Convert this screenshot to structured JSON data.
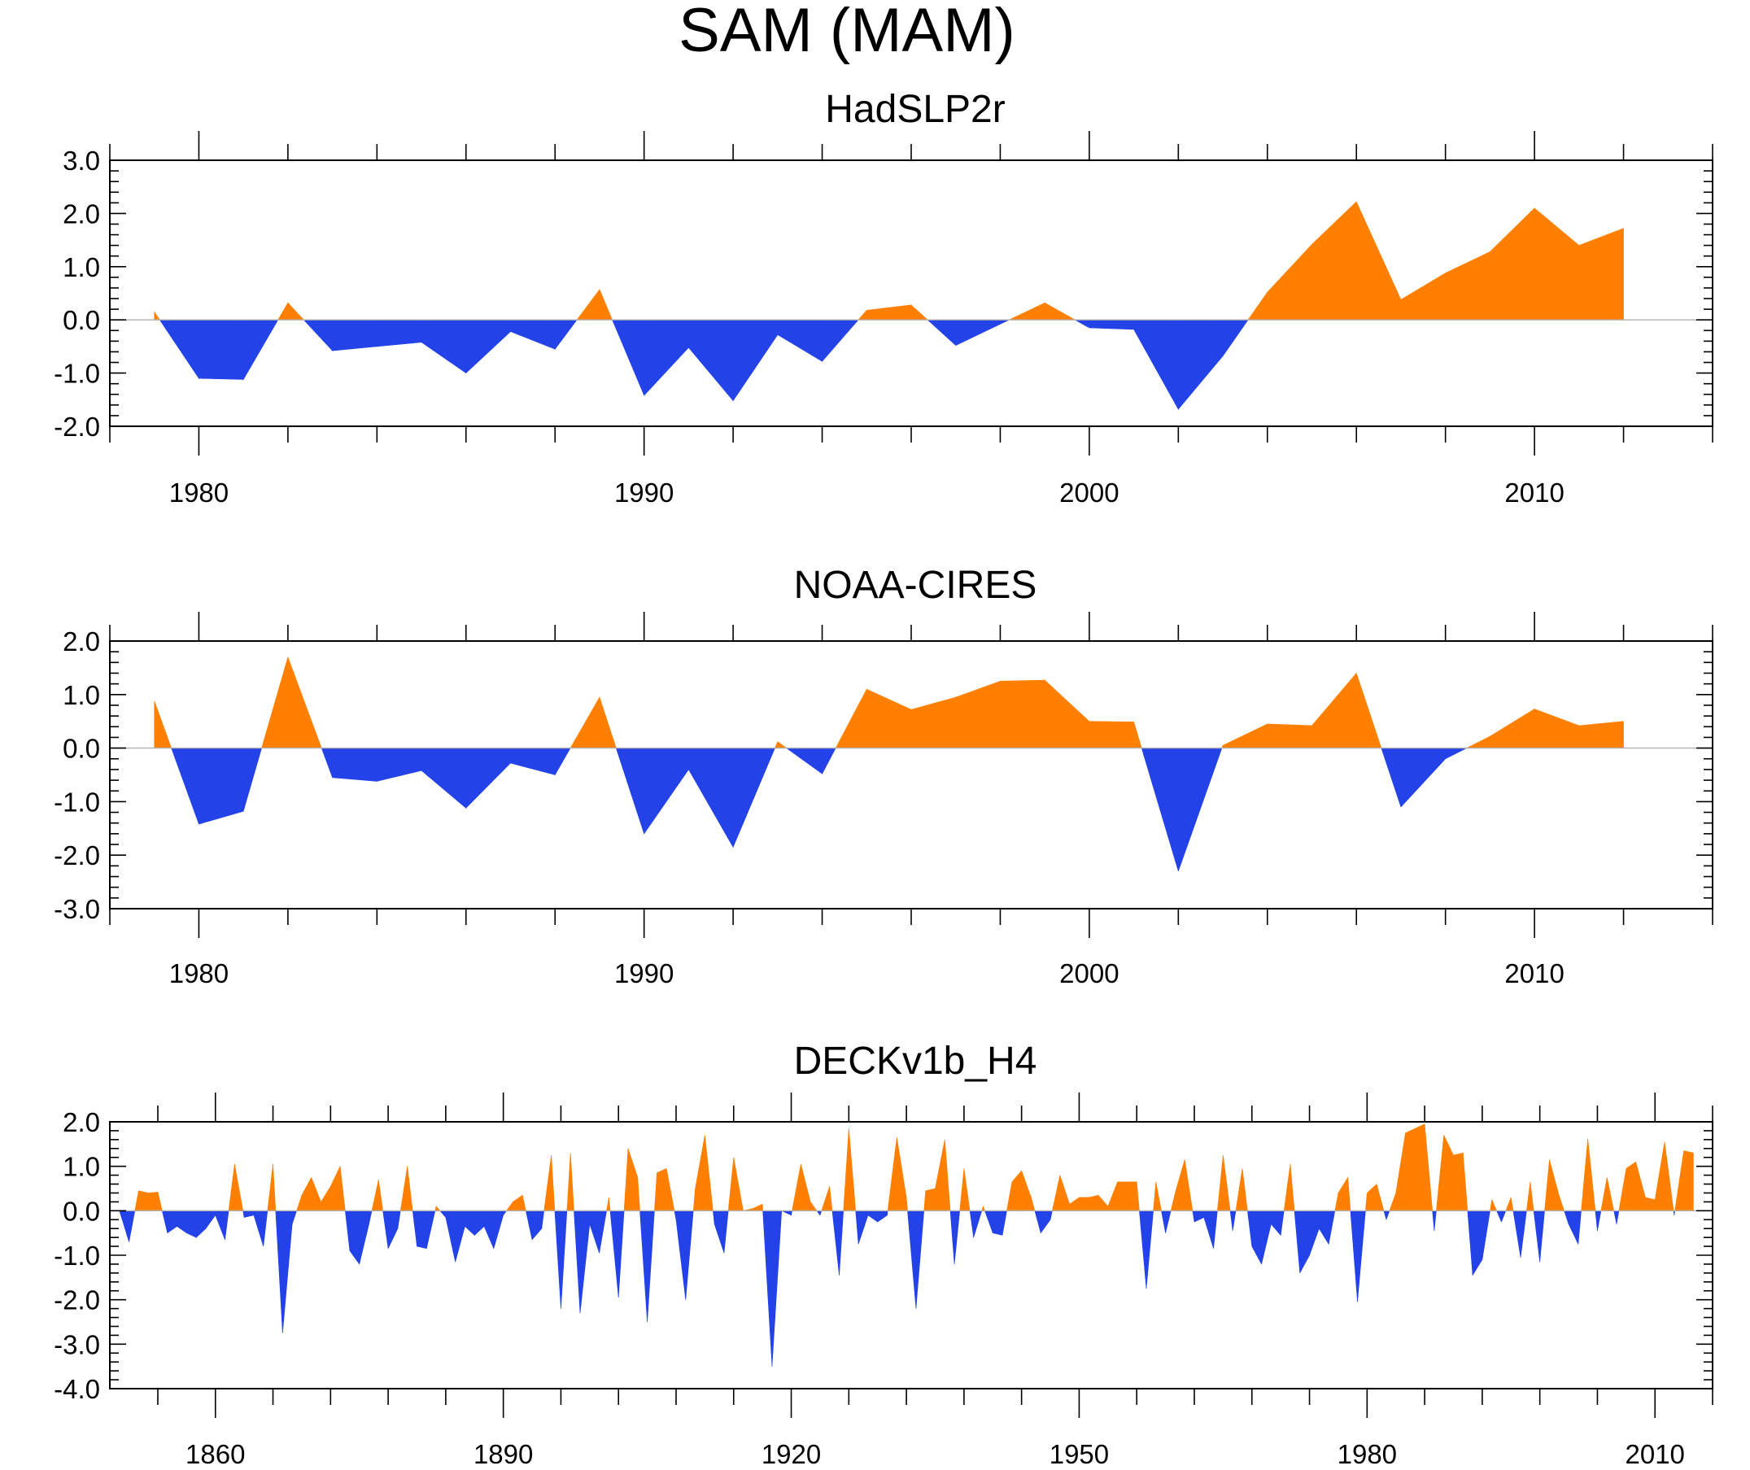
{
  "title": "SAM (MAM)",
  "colors": {
    "positive": "#ff8000",
    "negative": "#2342e8",
    "zero_line": "#b0b0b0"
  },
  "chart_data": [
    {
      "type": "area",
      "title": "HadSLP2r",
      "xlabel": "",
      "ylabel": "",
      "xlim": [
        1978,
        2014
      ],
      "ylim": [
        -2.0,
        3.0
      ],
      "x_ticks": [
        1980,
        1990,
        2000,
        2010
      ],
      "y_ticks": [
        -2.0,
        -1.0,
        0.0,
        1.0,
        2.0,
        3.0
      ],
      "x_tick_labels": [
        "1980",
        "1990",
        "2000",
        "2010"
      ],
      "y_tick_labels": [
        "-2.0",
        "-1.0",
        "0.0",
        "1.0",
        "2.0",
        "3.0"
      ],
      "x": [
        1979,
        1980,
        1981,
        1982,
        1983,
        1984,
        1985,
        1986,
        1987,
        1988,
        1989,
        1990,
        1991,
        1992,
        1993,
        1994,
        1995,
        1996,
        1997,
        1998,
        1999,
        2000,
        2001,
        2002,
        2003,
        2004,
        2005,
        2006,
        2007,
        2008,
        2009,
        2010,
        2011,
        2012
      ],
      "values": [
        0.15,
        -1.1,
        -1.12,
        0.32,
        -0.58,
        -0.5,
        -0.42,
        -1.0,
        -0.22,
        -0.55,
        0.57,
        -1.42,
        -0.52,
        -1.52,
        -0.28,
        -0.78,
        0.18,
        0.28,
        -0.48,
        -0.08,
        0.32,
        -0.15,
        -0.18,
        -1.68,
        -0.68,
        0.52,
        1.42,
        2.22,
        0.38,
        0.88,
        1.28,
        2.1,
        1.4,
        1.72
      ]
    },
    {
      "type": "area",
      "title": "NOAA-CIRES",
      "xlabel": "",
      "ylabel": "",
      "xlim": [
        1978,
        2014
      ],
      "ylim": [
        -3.0,
        2.0
      ],
      "x_ticks": [
        1980,
        1990,
        2000,
        2010
      ],
      "y_ticks": [
        -3.0,
        -2.0,
        -1.0,
        0.0,
        1.0,
        2.0
      ],
      "x_tick_labels": [
        "1980",
        "1990",
        "2000",
        "2010"
      ],
      "y_tick_labels": [
        "-3.0",
        "-2.0",
        "-1.0",
        "0.0",
        "1.0",
        "2.0"
      ],
      "x": [
        1979,
        1980,
        1981,
        1982,
        1983,
        1984,
        1985,
        1986,
        1987,
        1988,
        1989,
        1990,
        1991,
        1992,
        1993,
        1994,
        1995,
        1996,
        1997,
        1998,
        1999,
        2000,
        2001,
        2002,
        2003,
        2004,
        2005,
        2006,
        2007,
        2008,
        2009,
        2010,
        2011,
        2012
      ],
      "values": [
        0.88,
        -1.42,
        -1.18,
        1.7,
        -0.55,
        -0.62,
        -0.42,
        -1.12,
        -0.28,
        -0.5,
        0.95,
        -1.6,
        -0.4,
        -1.85,
        0.12,
        -0.48,
        1.1,
        0.72,
        0.95,
        1.25,
        1.27,
        0.5,
        0.49,
        -2.3,
        0.05,
        0.45,
        0.42,
        1.4,
        -1.1,
        -0.2,
        0.22,
        0.73,
        0.42,
        0.5
      ]
    },
    {
      "type": "area",
      "title": "DECKv1b_H4",
      "xlabel": "",
      "ylabel": "",
      "xlim": [
        1849,
        2016
      ],
      "ylim": [
        -4.0,
        2.0
      ],
      "x_ticks": [
        1860,
        1890,
        1920,
        1950,
        1980,
        2010
      ],
      "y_ticks": [
        -4.0,
        -3.0,
        -2.0,
        -1.0,
        0.0,
        1.0,
        2.0
      ],
      "x_tick_labels": [
        "1860",
        "1890",
        "1920",
        "1950",
        "1980",
        "2010"
      ],
      "y_tick_labels": [
        "-4.0",
        "-3.0",
        "-2.0",
        "-1.0",
        "0.0",
        "1.0",
        "2.0"
      ],
      "x": [
        1850,
        1851,
        1852,
        1853,
        1854,
        1855,
        1856,
        1857,
        1858,
        1859,
        1860,
        1861,
        1862,
        1863,
        1864,
        1865,
        1866,
        1867,
        1868,
        1869,
        1870,
        1871,
        1872,
        1873,
        1874,
        1875,
        1876,
        1877,
        1878,
        1879,
        1880,
        1881,
        1882,
        1883,
        1884,
        1885,
        1886,
        1887,
        1888,
        1889,
        1890,
        1891,
        1892,
        1893,
        1894,
        1895,
        1896,
        1897,
        1898,
        1899,
        1900,
        1901,
        1902,
        1903,
        1904,
        1905,
        1906,
        1907,
        1908,
        1909,
        1910,
        1911,
        1912,
        1913,
        1914,
        1915,
        1916,
        1917,
        1918,
        1919,
        1920,
        1921,
        1922,
        1923,
        1924,
        1925,
        1926,
        1927,
        1928,
        1929,
        1930,
        1931,
        1932,
        1933,
        1934,
        1935,
        1936,
        1937,
        1938,
        1939,
        1940,
        1941,
        1942,
        1943,
        1944,
        1945,
        1946,
        1947,
        1948,
        1949,
        1950,
        1951,
        1952,
        1953,
        1954,
        1955,
        1956,
        1957,
        1958,
        1959,
        1960,
        1961,
        1962,
        1963,
        1964,
        1965,
        1966,
        1967,
        1968,
        1969,
        1970,
        1971,
        1972,
        1973,
        1974,
        1975,
        1976,
        1977,
        1978,
        1979,
        1980,
        1981,
        1982,
        1983,
        1984,
        1985,
        1986,
        1987,
        1988,
        1989,
        1990,
        1991,
        1992,
        1993,
        1994,
        1995,
        1996,
        1997,
        1998,
        1999,
        2000,
        2001,
        2002,
        2003,
        2004,
        2005,
        2006,
        2007,
        2008,
        2009,
        2010,
        2011,
        2012,
        2013,
        2014
      ],
      "values": [
        0.0,
        -0.7,
        0.45,
        0.4,
        0.42,
        -0.5,
        -0.35,
        -0.5,
        -0.6,
        -0.4,
        -0.1,
        -0.65,
        1.05,
        -0.15,
        -0.1,
        -0.8,
        1.05,
        -2.75,
        -0.3,
        0.35,
        0.75,
        0.2,
        0.55,
        1.0,
        -0.9,
        -1.2,
        -0.3,
        0.7,
        -0.85,
        -0.4,
        1.0,
        -0.8,
        -0.85,
        0.1,
        -0.15,
        -1.15,
        -0.35,
        -0.55,
        -0.35,
        -0.85,
        -0.1,
        0.2,
        0.35,
        -0.65,
        -0.4,
        1.25,
        -2.2,
        1.3,
        -2.3,
        -0.3,
        -0.95,
        0.3,
        -1.95,
        1.4,
        0.75,
        -2.5,
        0.85,
        0.95,
        -0.2,
        -2.0,
        0.5,
        1.7,
        -0.3,
        -0.95,
        1.2,
        0.0,
        0.05,
        0.15,
        -3.5,
        0.0,
        -0.1,
        1.05,
        0.2,
        -0.1,
        0.55,
        -1.45,
        1.85,
        -0.75,
        -0.1,
        -0.25,
        -0.1,
        1.65,
        0.3,
        -2.2,
        0.45,
        0.5,
        1.6,
        -1.2,
        0.95,
        -0.6,
        0.1,
        -0.5,
        -0.55,
        0.65,
        0.9,
        0.3,
        -0.5,
        -0.2,
        0.8,
        0.15,
        0.3,
        0.3,
        0.35,
        0.1,
        0.65,
        0.65,
        0.65,
        -1.75,
        0.65,
        -0.5,
        0.4,
        1.15,
        -0.25,
        -0.15,
        -0.85,
        1.25,
        -0.45,
        0.95,
        -0.8,
        -1.2,
        -0.3,
        -0.55,
        1.05,
        -1.4,
        -1.0,
        -0.4,
        -0.75,
        0.4,
        0.75,
        -2.05,
        0.4,
        0.6,
        -0.2,
        0.4,
        1.75,
        1.85,
        1.95,
        -0.45,
        1.7,
        1.25,
        1.3,
        -1.45,
        -1.1,
        0.25,
        -0.25,
        0.3,
        -1.05,
        0.65,
        -1.15,
        1.15,
        0.35,
        -0.3,
        -0.75,
        1.62,
        -0.45,
        0.75,
        -0.3,
        0.95,
        1.1,
        0.3,
        0.25,
        1.55,
        -0.1,
        1.35,
        1.3
      ]
    }
  ]
}
